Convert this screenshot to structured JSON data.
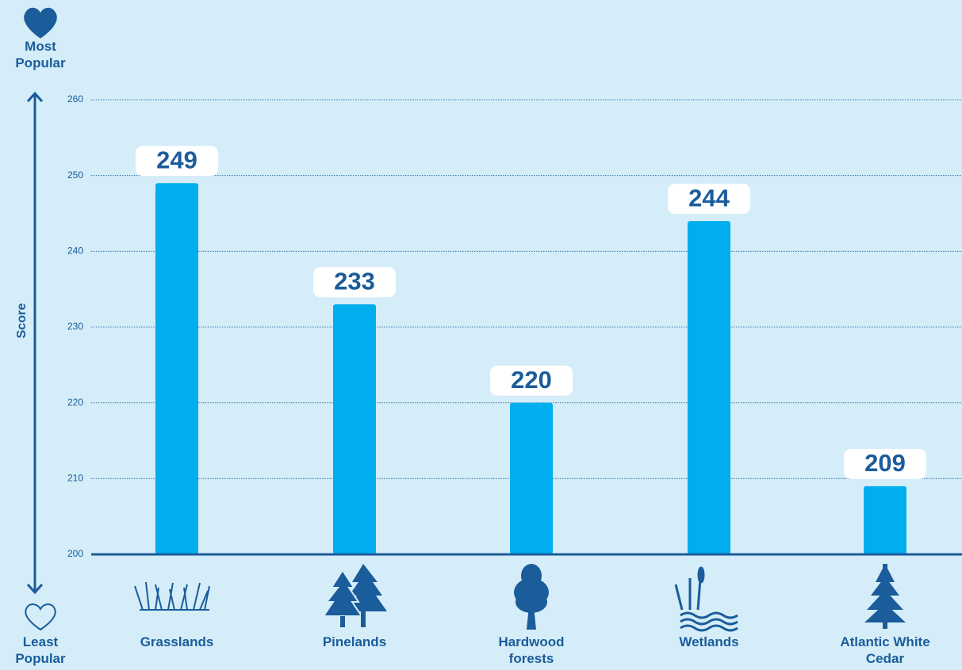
{
  "chart_data": {
    "type": "bar",
    "y_label": "Score",
    "top_label": "Most Popular",
    "bottom_label": "Least Popular",
    "categories": [
      "Grasslands",
      "Pinelands",
      "Hardwood forests",
      "Wetlands",
      "Atlantic White Cedar"
    ],
    "values": [
      249,
      233,
      220,
      244,
      209
    ],
    "color": "#00aeef",
    "ylim": [
      200,
      260
    ],
    "yticks": [
      200,
      210,
      220,
      230,
      240,
      250,
      260
    ],
    "grid": true
  }
}
